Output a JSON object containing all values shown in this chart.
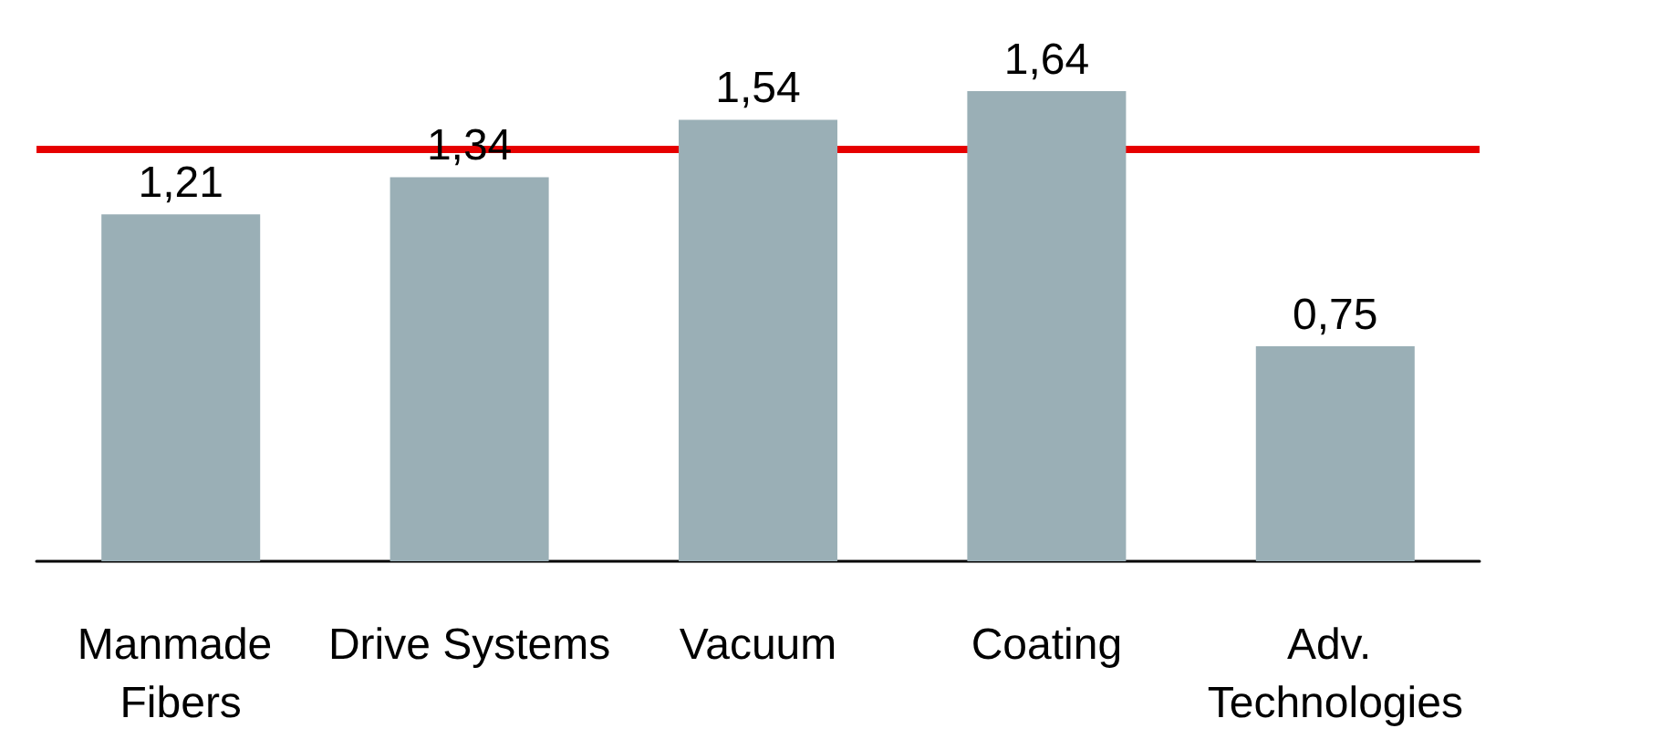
{
  "chart_data": {
    "type": "bar",
    "categories": [
      "Manmade Fibers",
      "Drive Systems",
      "Vacuum",
      "Coating",
      "Adv. Technologies"
    ],
    "values": [
      1.21,
      1.34,
      1.54,
      1.64,
      0.75
    ],
    "value_labels": [
      "1,21",
      "1,34",
      "1,54",
      "1,64",
      "0,75"
    ],
    "color": "#9aafb6",
    "ref_lines": [
      {
        "axis": "y",
        "value": 1.44,
        "color": "#e60000"
      }
    ],
    "grid": false
  }
}
